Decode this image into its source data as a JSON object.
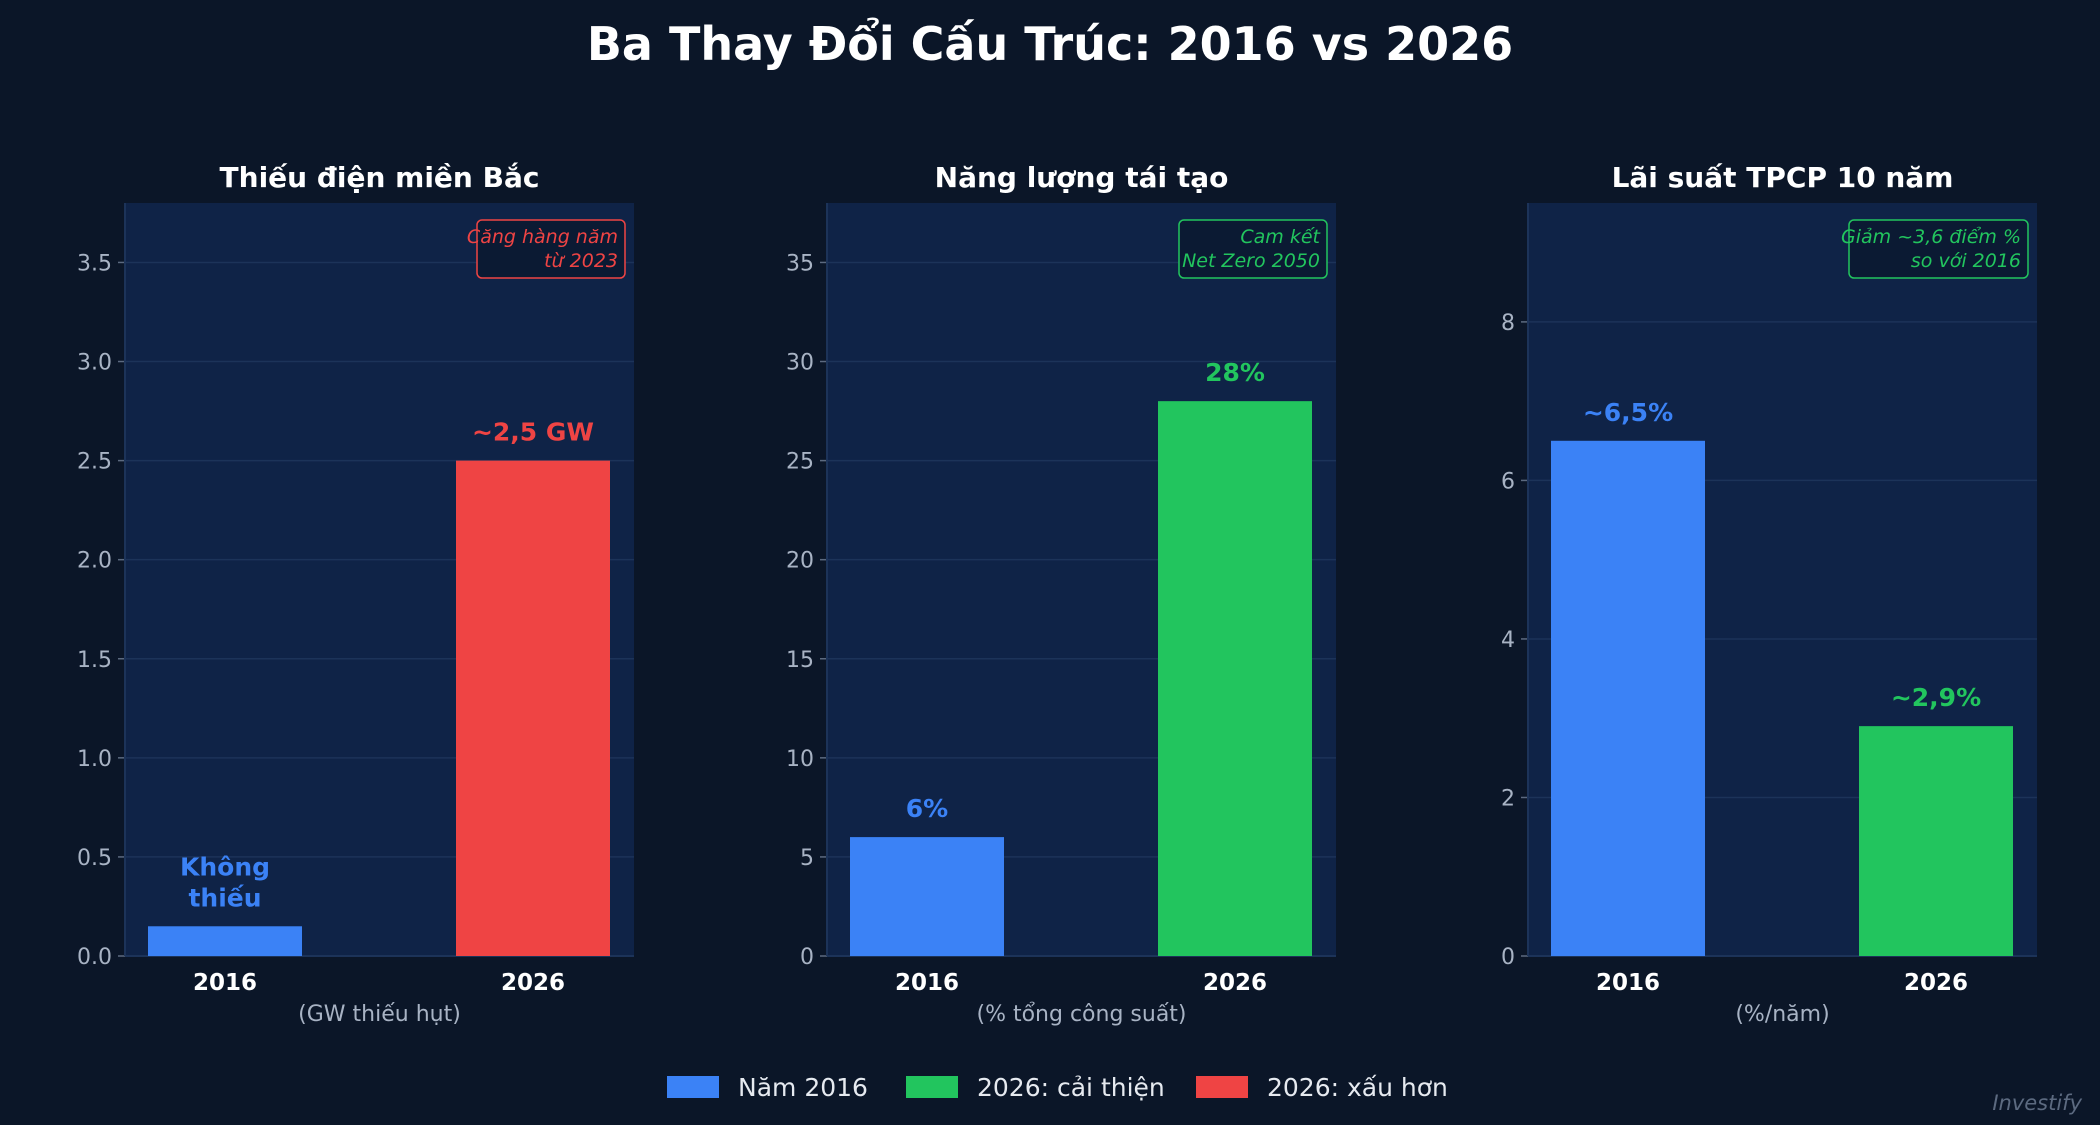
{
  "title": "Ba Thay Đổi Cấu Trúc: 2016 vs 2026",
  "colors": {
    "background": "#0b1628",
    "plot_bg": "#0f2347",
    "grid": "#1c3359",
    "axis_text": "#a8b3c4",
    "title_text": "#ffffff",
    "blue": "#3b82f6",
    "green": "#22c55e",
    "red": "#ef4444",
    "watermark": "#5c6a80"
  },
  "legend": {
    "placement": "bottom-center",
    "items": [
      {
        "label": "Năm 2016",
        "color": "#3b82f6"
      },
      {
        "label": "2026: cải thiện",
        "color": "#22c55e"
      },
      {
        "label": "2026: xấu hơn",
        "color": "#ef4444"
      }
    ]
  },
  "watermark": "Investify",
  "chart_data": [
    {
      "type": "bar",
      "title": "Thiếu điện miền Bắc",
      "xlabel": "(GW thiếu hụt)",
      "categories": [
        "2016",
        "2026"
      ],
      "values": [
        0.15,
        2.5
      ],
      "bar_colors": [
        "#3b82f6",
        "#ef4444"
      ],
      "data_labels": [
        "Không\nthiếu",
        "~2,5 GW"
      ],
      "ylim": [
        0,
        3.8
      ],
      "yticks": [
        0,
        0.5,
        1.0,
        1.5,
        2.0,
        2.5,
        3.0,
        3.5
      ],
      "ytick_labels": [
        "0.0",
        "0.5",
        "1.0",
        "1.5",
        "2.0",
        "2.5",
        "3.0",
        "3.5"
      ],
      "grid": true,
      "annotation": {
        "text": "Căng hàng năm\ntừ 2023",
        "color": "#ef4444",
        "placement": "top-right"
      }
    },
    {
      "type": "bar",
      "title": "Năng lượng tái tạo",
      "xlabel": "(% tổng công suất)",
      "categories": [
        "2016",
        "2026"
      ],
      "values": [
        6,
        28
      ],
      "bar_colors": [
        "#3b82f6",
        "#22c55e"
      ],
      "data_labels": [
        "6%",
        "28%"
      ],
      "ylim": [
        0,
        38
      ],
      "yticks": [
        0,
        5,
        10,
        15,
        20,
        25,
        30,
        35
      ],
      "ytick_labels": [
        "0",
        "5",
        "10",
        "15",
        "20",
        "25",
        "30",
        "35"
      ],
      "grid": true,
      "annotation": {
        "text": "Cam kết\nNet Zero 2050",
        "color": "#22c55e",
        "placement": "top-right"
      }
    },
    {
      "type": "bar",
      "title": "Lãi suất TPCP 10 năm",
      "xlabel": "(%/năm)",
      "categories": [
        "2016",
        "2026"
      ],
      "values": [
        6.5,
        2.9
      ],
      "bar_colors": [
        "#3b82f6",
        "#22c55e"
      ],
      "data_labels": [
        "~6,5%",
        "~2,9%"
      ],
      "ylim": [
        0,
        9.5
      ],
      "yticks": [
        0,
        2,
        4,
        6,
        8
      ],
      "ytick_labels": [
        "0",
        "2",
        "4",
        "6",
        "8"
      ],
      "grid": true,
      "annotation": {
        "text": "Giảm ~3,6 điểm %\nso với 2016",
        "color": "#22c55e",
        "placement": "top-right"
      }
    }
  ]
}
